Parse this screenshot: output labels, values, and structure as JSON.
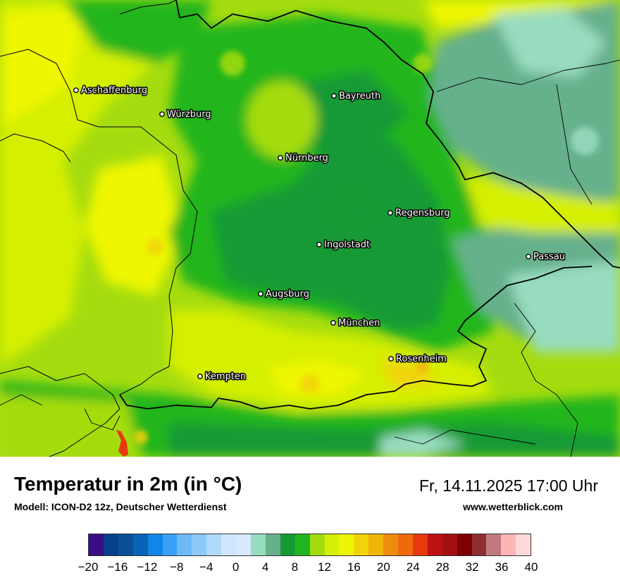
{
  "map": {
    "cities": [
      {
        "name": "Aschaffenburg"
      },
      {
        "name": "Würzburg"
      },
      {
        "name": "Bayreuth"
      },
      {
        "name": "Nürnberg"
      },
      {
        "name": "Regensburg"
      },
      {
        "name": "Ingolstadt"
      },
      {
        "name": "Passau"
      },
      {
        "name": "Augsburg"
      },
      {
        "name": "München"
      },
      {
        "name": "Rosenheim"
      },
      {
        "name": "Kempten"
      }
    ]
  },
  "legend": {
    "title": "Temperatur in 2m (in °C)",
    "model": "Modell: ICON-D2 12z, Deutscher Wetterdienst",
    "datetime": "Fr, 14.11.2025 17:00 Uhr",
    "website": "www.wetterblick.com",
    "colors": [
      "#3a0c85",
      "#083f8a",
      "#0a4f9a",
      "#0b62b8",
      "#1186e8",
      "#39a0f5",
      "#6cb9f8",
      "#8cc8fa",
      "#b0d9fb",
      "#cfe7fd",
      "#d7eaff",
      "#98dcbf",
      "#66b08c",
      "#159a34",
      "#21b51f",
      "#a5dc0f",
      "#d5ef06",
      "#eef606",
      "#f2d308",
      "#f1b40a",
      "#f08c0b",
      "#f06a0d",
      "#e8380e",
      "#bc1212",
      "#a30f11",
      "#7e0000",
      "#8e2f33",
      "#c07a7f",
      "#ffb4b6",
      "#ffd8da"
    ],
    "ticks": [
      "−20",
      "−16",
      "−12",
      "−8",
      "−4",
      "0",
      "4",
      "8",
      "12",
      "16",
      "20",
      "24",
      "28",
      "32",
      "36",
      "40"
    ]
  }
}
